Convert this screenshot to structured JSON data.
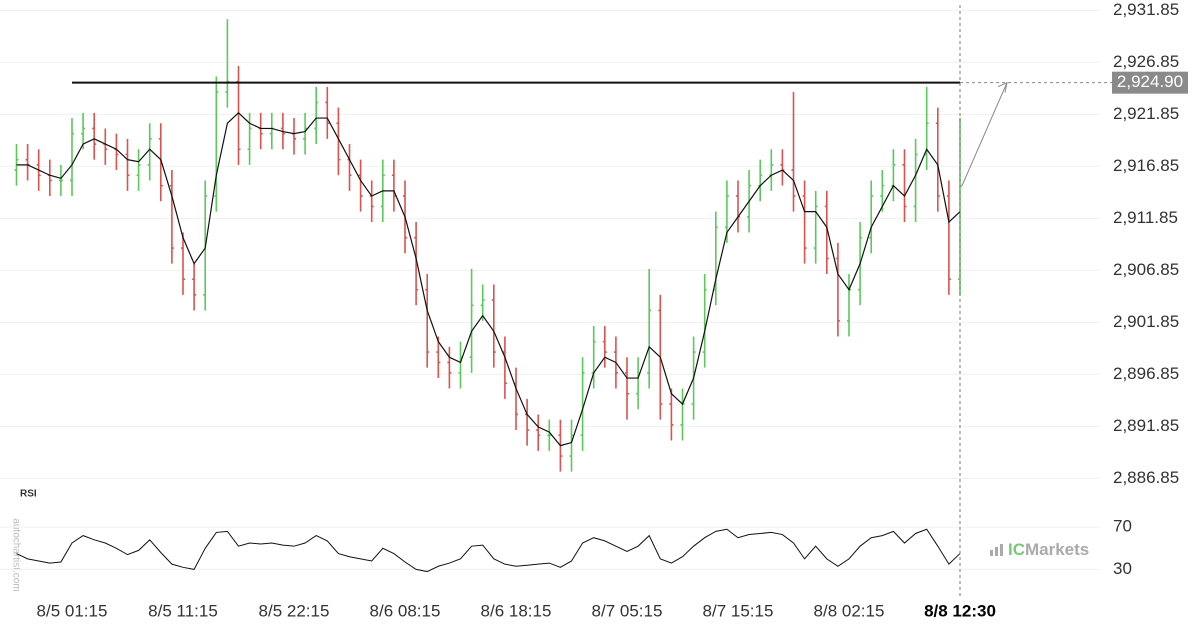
{
  "chart_data": {
    "type": "ohlc",
    "categories": [
      null,
      null,
      null,
      null,
      null,
      "8/5 01:15",
      null,
      null,
      null,
      null,
      null,
      null,
      null,
      null,
      null,
      "8/5 11:15",
      null,
      null,
      null,
      null,
      null,
      null,
      null,
      null,
      null,
      "8/5 22:15",
      null,
      null,
      null,
      null,
      null,
      null,
      null,
      null,
      null,
      "8/6 08:15",
      null,
      null,
      null,
      null,
      null,
      null,
      null,
      null,
      null,
      "8/6 18:15",
      null,
      null,
      null,
      null,
      null,
      null,
      null,
      null,
      null,
      "8/7 05:15",
      null,
      null,
      null,
      null,
      null,
      null,
      null,
      null,
      null,
      "8/7 15:15",
      null,
      null,
      null,
      null,
      null,
      null,
      null,
      null,
      null,
      "8/8 02:15",
      null,
      null,
      null,
      null,
      null,
      null,
      null,
      null,
      null,
      "8/8 12:30"
    ],
    "open": [
      2916.5,
      2917.5,
      2917,
      2916,
      2915.5,
      2915.5,
      2920,
      2920.5,
      2919,
      2918.5,
      2918,
      2916,
      2917,
      2919.5,
      2915,
      2909,
      2906,
      2904.5,
      2914,
      2924,
      2925,
      2918.5,
      2920.5,
      2920,
      2920.5,
      2920,
      2919.5,
      2920.5,
      2923,
      2921,
      2917.5,
      2916,
      2914,
      2913,
      2916,
      2914,
      2910,
      2905,
      2899,
      2898,
      2897,
      2898.5,
      2903.5,
      2904,
      2899,
      2896,
      2893,
      2891.5,
      2891,
      2891,
      2889,
      2891,
      2897,
      2900,
      2899,
      2897,
      2895,
      2897,
      2903,
      2894,
      2892,
      2894,
      2899,
      2905,
      2911,
      2914,
      2912,
      2915,
      2916,
      2917,
      2916.5,
      2914,
      2909,
      2913,
      2908,
      2902,
      2905,
      2910,
      2914,
      2915,
      2917,
      2913,
      2918,
      2921,
      2914,
      2906
    ],
    "high": [
      2919,
      2919,
      2918.5,
      2917.5,
      2917,
      2921.5,
      2922,
      2922,
      2920.5,
      2920,
      2919.5,
      2918.5,
      2921,
      2921,
      2916.5,
      2910.5,
      2907.5,
      2915.5,
      2925.5,
      2931,
      2926.5,
      2922,
      2922,
      2922,
      2922,
      2921.5,
      2922,
      2924.5,
      2924.5,
      2922.5,
      2919,
      2917.5,
      2915.5,
      2917.5,
      2917.5,
      2915.5,
      2911.5,
      2906.5,
      2900.5,
      2899.5,
      2900,
      2907,
      2905.5,
      2905.5,
      2900.5,
      2897.5,
      2894.5,
      2893,
      2892.5,
      2892.5,
      2892.5,
      2898.5,
      2901.5,
      2901.5,
      2900.5,
      2898.5,
      2898.5,
      2907,
      2904.5,
      2895.5,
      2895.5,
      2900.5,
      2906.5,
      2912.5,
      2915.5,
      2915.5,
      2916.5,
      2917.5,
      2918.5,
      2918.5,
      2924,
      2915.5,
      2914.5,
      2914.5,
      2909.5,
      2906.5,
      2911.5,
      2915.5,
      2916.5,
      2918.5,
      2918.5,
      2919.5,
      2924.5,
      2922.5,
      2915.5,
      2921.5
    ],
    "low": [
      2915,
      2915.5,
      2914.5,
      2914,
      2914,
      2914,
      2918.5,
      2917.5,
      2917,
      2916.5,
      2914.5,
      2914.5,
      2915.5,
      2913.5,
      2907.5,
      2904.5,
      2903,
      2903,
      2912.5,
      2922.5,
      2917,
      2917,
      2918.5,
      2918.5,
      2918.5,
      2918,
      2918,
      2919,
      2919.5,
      2916,
      2914.5,
      2912.5,
      2911.5,
      2911.5,
      2912.5,
      2908.5,
      2903.5,
      2897.5,
      2896.5,
      2895.5,
      2895.5,
      2897,
      2902,
      2897.5,
      2894.5,
      2891.5,
      2890,
      2889.5,
      2889.5,
      2887.5,
      2887.5,
      2889.5,
      2895.5,
      2897.5,
      2895.5,
      2892.5,
      2893.5,
      2895.5,
      2892.5,
      2890.5,
      2890.5,
      2892.5,
      2897.5,
      2903.5,
      2909.5,
      2910.5,
      2910.5,
      2913.5,
      2914.5,
      2915,
      2912.5,
      2907.5,
      2907.5,
      2906.5,
      2900.5,
      2900.5,
      2903.5,
      2908.5,
      2912.5,
      2913.5,
      2911.5,
      2911.5,
      2916.5,
      2912.5,
      2904.5,
      2904.5
    ],
    "close": [
      2917.5,
      2917,
      2916,
      2915.5,
      2915.5,
      2920,
      2920.5,
      2919,
      2918.5,
      2918,
      2916,
      2917,
      2919.5,
      2915,
      2909,
      2906,
      2904.5,
      2914,
      2924,
      2925,
      2918.5,
      2920.5,
      2920,
      2920.5,
      2920,
      2919.5,
      2920.5,
      2923,
      2921,
      2917.5,
      2916,
      2914,
      2913,
      2916,
      2914,
      2910,
      2905,
      2899,
      2898,
      2897,
      2898.5,
      2903.5,
      2904,
      2899,
      2896,
      2893,
      2891.5,
      2891,
      2891,
      2889,
      2891,
      2897,
      2900,
      2899,
      2897,
      2895,
      2897,
      2903,
      2894,
      2892,
      2894,
      2899,
      2905,
      2911,
      2914,
      2912,
      2915,
      2916,
      2917,
      2916.5,
      2914,
      2909,
      2913,
      2908,
      2902,
      2905,
      2910,
      2914,
      2915,
      2917,
      2913,
      2918,
      2921,
      2914,
      2906,
      2915
    ],
    "up_color": "#5cc85c",
    "down_color": "#d9534f",
    "moving_average": {
      "color": "#111111",
      "values": [
        2917,
        2917,
        2916.5,
        2916,
        2915.7,
        2917,
        2919,
        2919.5,
        2919,
        2918.5,
        2917.5,
        2917.3,
        2918.5,
        2917.5,
        2914,
        2910,
        2907.5,
        2909,
        2916,
        2921,
        2922,
        2921,
        2920.5,
        2920.5,
        2920.2,
        2920,
        2920.2,
        2921.5,
        2921.5,
        2919.5,
        2917.5,
        2915.5,
        2914,
        2914.5,
        2914.5,
        2912,
        2908,
        2903,
        2900,
        2898.5,
        2898,
        2901,
        2902.5,
        2901,
        2898.5,
        2895.5,
        2893,
        2891.8,
        2891.3,
        2890,
        2890.3,
        2893.5,
        2897,
        2898.5,
        2898,
        2896.5,
        2896.5,
        2899.5,
        2898.5,
        2895,
        2894,
        2896.5,
        2901,
        2906,
        2910.5,
        2912,
        2913.5,
        2915,
        2916,
        2916.5,
        2915.5,
        2912.5,
        2912.5,
        2911,
        2906.5,
        2905,
        2907.5,
        2911,
        2913,
        2915,
        2914,
        2916,
        2918.5,
        2917,
        2911.5,
        2912.5
      ]
    },
    "ylim": [
      2884.85,
      2932.85
    ],
    "yticks": [
      {
        "value": 2931.85,
        "label": "2,931.85"
      },
      {
        "value": 2926.85,
        "label": "2,926.85"
      },
      {
        "value": 2921.85,
        "label": "2,921.85"
      },
      {
        "value": 2916.85,
        "label": "2,916.85"
      },
      {
        "value": 2911.85,
        "label": "2,911.85"
      },
      {
        "value": 2906.85,
        "label": "2,906.85"
      },
      {
        "value": 2901.85,
        "label": "2,901.85"
      },
      {
        "value": 2896.85,
        "label": "2,896.85"
      },
      {
        "value": 2891.85,
        "label": "2,891.85"
      },
      {
        "value": 2886.85,
        "label": "2,886.85"
      }
    ],
    "grid": true,
    "level": {
      "value": 2924.9,
      "label": "2,924.90"
    },
    "rsi": {
      "title": "RSI",
      "color": "#111111",
      "ylim": [
        20,
        90
      ],
      "yticks": [
        70,
        30
      ],
      "values": [
        45,
        40,
        38,
        36,
        37,
        55,
        62,
        58,
        55,
        50,
        44,
        48,
        58,
        46,
        35,
        32,
        30,
        50,
        65,
        66,
        52,
        55,
        54,
        55,
        53,
        52,
        55,
        62,
        57,
        45,
        42,
        40,
        38,
        50,
        45,
        37,
        30,
        28,
        33,
        36,
        40,
        52,
        53,
        40,
        35,
        33,
        34,
        35,
        36,
        32,
        38,
        55,
        60,
        57,
        52,
        47,
        52,
        62,
        40,
        36,
        42,
        52,
        60,
        66,
        68,
        60,
        63,
        64,
        65,
        63,
        55,
        40,
        52,
        40,
        33,
        40,
        52,
        60,
        62,
        66,
        55,
        64,
        68,
        52,
        35,
        45
      ]
    },
    "watermark": "autochartist.com",
    "brand": [
      "IC",
      "Markets"
    ]
  }
}
